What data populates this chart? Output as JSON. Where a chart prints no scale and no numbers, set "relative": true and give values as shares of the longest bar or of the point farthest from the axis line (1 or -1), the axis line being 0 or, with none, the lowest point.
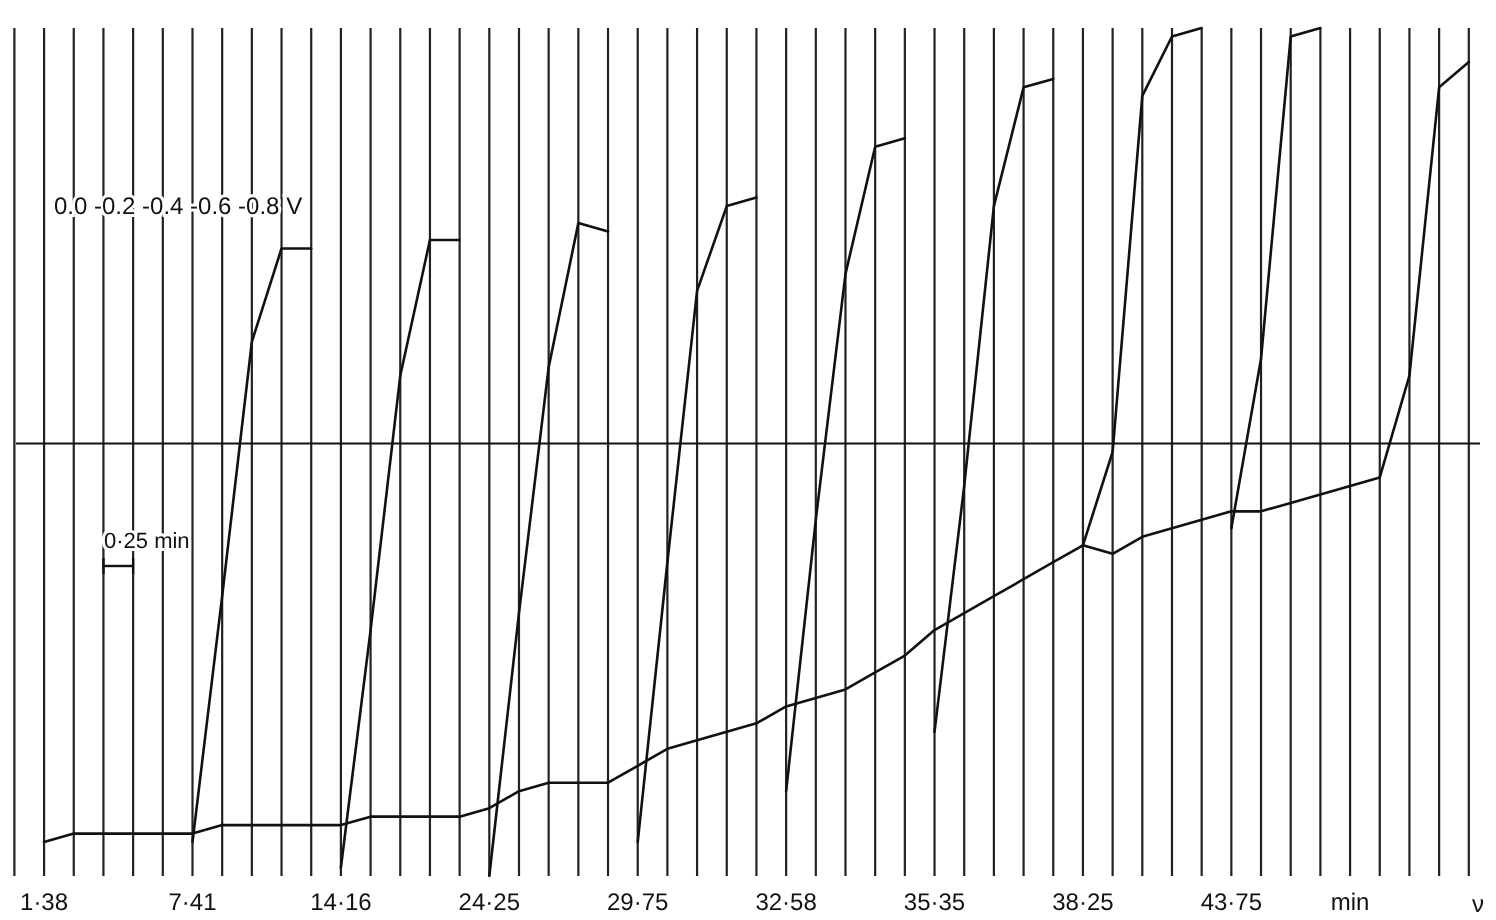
{
  "chart_data": {
    "type": "line",
    "relative": true,
    "xlabel": "min",
    "grid": "x",
    "marker": "none",
    "line_style": "solid",
    "categories": [
      null,
      "1·38",
      null,
      null,
      null,
      null,
      "7·41",
      null,
      null,
      null,
      null,
      "14·16",
      null,
      null,
      null,
      null,
      "24·25",
      null,
      null,
      null,
      null,
      "29·75",
      null,
      null,
      null,
      null,
      "32·58",
      null,
      null,
      null,
      null,
      "35·35",
      null,
      null,
      null,
      null,
      "38·25",
      null,
      null,
      null,
      null,
      "43·75",
      null,
      null,
      null,
      null,
      null,
      null,
      null,
      null
    ],
    "series": [
      {
        "color": "#111111",
        "values": [
          null,
          0.04,
          0.05,
          0.05,
          0.05,
          0.05,
          0.05,
          0.06,
          0.06,
          0.06,
          0.06,
          0.06,
          0.07,
          0.07,
          0.07,
          0.07,
          0.08,
          0.1,
          0.11,
          0.11,
          0.11,
          0.13,
          0.15,
          0.16,
          0.17,
          0.18,
          0.2,
          0.21,
          0.22,
          0.24,
          0.26,
          0.29,
          0.31,
          0.33,
          0.35,
          0.37,
          0.39,
          0.38,
          0.4,
          0.41,
          0.42,
          0.43,
          0.43,
          0.44,
          0.45,
          0.46,
          0.47,
          null,
          null,
          null
        ]
      },
      {
        "color": "#111111",
        "values": [
          null,
          null,
          null,
          null,
          null,
          null,
          0.04,
          0.33,
          0.63,
          0.74,
          0.74,
          null,
          null,
          null,
          null,
          null,
          null,
          null,
          null,
          null,
          null,
          null,
          null,
          null,
          null,
          null,
          null,
          null,
          null,
          null,
          null,
          null,
          null,
          null,
          null,
          null,
          null,
          null,
          null,
          null,
          null,
          null,
          null,
          null,
          null,
          null,
          null,
          null,
          null,
          null
        ]
      },
      {
        "color": "#111111",
        "values": [
          null,
          null,
          null,
          null,
          null,
          null,
          null,
          null,
          null,
          null,
          null,
          0.01,
          0.29,
          0.59,
          0.75,
          0.75,
          null,
          null,
          null,
          null,
          null,
          null,
          null,
          null,
          null,
          null,
          null,
          null,
          null,
          null,
          null,
          null,
          null,
          null,
          null,
          null,
          null,
          null,
          null,
          null,
          null,
          null,
          null,
          null,
          null,
          null,
          null,
          null,
          null,
          null
        ]
      },
      {
        "color": "#111111",
        "values": [
          null,
          null,
          null,
          null,
          null,
          null,
          null,
          null,
          null,
          null,
          null,
          null,
          null,
          null,
          null,
          null,
          0,
          0.31,
          0.6,
          0.77,
          0.76,
          null,
          null,
          null,
          null,
          null,
          null,
          null,
          null,
          null,
          null,
          null,
          null,
          null,
          null,
          null,
          null,
          null,
          null,
          null,
          null,
          null,
          null,
          null,
          null,
          null,
          null,
          null,
          null,
          null
        ]
      },
      {
        "color": "#111111",
        "values": [
          null,
          null,
          null,
          null,
          null,
          null,
          null,
          null,
          null,
          null,
          null,
          null,
          null,
          null,
          null,
          null,
          null,
          null,
          null,
          null,
          null,
          0.04,
          0.37,
          0.69,
          0.79,
          0.8,
          null,
          null,
          null,
          null,
          null,
          null,
          null,
          null,
          null,
          null,
          null,
          null,
          null,
          null,
          null,
          null,
          null,
          null,
          null,
          null,
          null,
          null,
          null,
          null
        ]
      },
      {
        "color": "#111111",
        "values": [
          null,
          null,
          null,
          null,
          null,
          null,
          null,
          null,
          null,
          null,
          null,
          null,
          null,
          null,
          null,
          null,
          null,
          null,
          null,
          null,
          null,
          null,
          null,
          null,
          null,
          null,
          0.1,
          0.42,
          0.71,
          0.86,
          0.87,
          null,
          null,
          null,
          null,
          null,
          null,
          null,
          null,
          null,
          null,
          null,
          null,
          null,
          null,
          null,
          null,
          null,
          null,
          null
        ]
      },
      {
        "color": "#111111",
        "values": [
          null,
          null,
          null,
          null,
          null,
          null,
          null,
          null,
          null,
          null,
          null,
          null,
          null,
          null,
          null,
          null,
          null,
          null,
          null,
          null,
          null,
          null,
          null,
          null,
          null,
          null,
          null,
          null,
          null,
          null,
          null,
          0.17,
          0.46,
          0.79,
          0.93,
          0.94,
          null,
          null,
          null,
          null,
          null,
          null,
          null,
          null,
          null,
          null,
          null,
          null,
          null,
          null
        ]
      },
      {
        "color": "#111111",
        "values": [
          null,
          null,
          null,
          null,
          null,
          null,
          null,
          null,
          null,
          null,
          null,
          null,
          null,
          null,
          null,
          null,
          null,
          null,
          null,
          null,
          null,
          null,
          null,
          null,
          null,
          null,
          null,
          null,
          null,
          null,
          null,
          null,
          null,
          null,
          null,
          null,
          0.39,
          0.5,
          0.92,
          0.99,
          1,
          null,
          null,
          null,
          null,
          null,
          null,
          null,
          null,
          null
        ]
      },
      {
        "color": "#111111",
        "values": [
          null,
          null,
          null,
          null,
          null,
          null,
          null,
          null,
          null,
          null,
          null,
          null,
          null,
          null,
          null,
          null,
          null,
          null,
          null,
          null,
          null,
          null,
          null,
          null,
          null,
          null,
          null,
          null,
          null,
          null,
          null,
          null,
          null,
          null,
          null,
          null,
          null,
          null,
          null,
          null,
          null,
          0.41,
          0.61,
          0.99,
          1,
          null,
          null,
          null,
          null,
          null
        ]
      },
      {
        "color": "#111111",
        "values": [
          null,
          null,
          null,
          null,
          null,
          null,
          null,
          null,
          null,
          null,
          null,
          null,
          null,
          null,
          null,
          null,
          null,
          null,
          null,
          null,
          null,
          null,
          null,
          null,
          null,
          null,
          null,
          null,
          null,
          null,
          null,
          null,
          null,
          null,
          null,
          null,
          null,
          null,
          null,
          null,
          null,
          null,
          null,
          null,
          null,
          null,
          0.47,
          0.59,
          0.93,
          0.96
        ]
      }
    ],
    "ref_lines": [
      {
        "axis": "y",
        "value": 0.51,
        "color": "#111111"
      }
    ],
    "annotations": [
      "0.0 -0.2 -0.4 -0.6 -0.8 V",
      "0·25 min",
      "ν"
    ]
  }
}
